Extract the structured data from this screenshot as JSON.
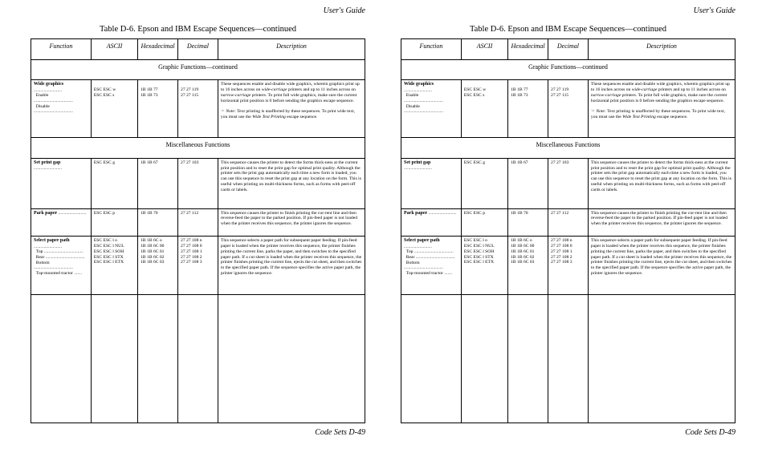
{
  "running_head": "User's Guide",
  "caption": "Table D-6.  Epson and IBM Escape Sequences—continued",
  "headers": {
    "function": "Function",
    "ascii": "ASCII",
    "hex": "Hexadecimal",
    "dec": "Decimal",
    "desc": "Description"
  },
  "section_graphic": "Graphic  Functions—continued",
  "section_misc": "Miscellaneous  Functions",
  "rows": {
    "wide": {
      "title": "Wide graphics",
      "enable": "Enable",
      "disable": "Disable",
      "ascii1": "ESC ESC w",
      "ascii2": "ESC ESC s",
      "hex1": "1B 1B 77",
      "hex2": "1B 1B 73",
      "dec1": "27 27 119",
      "dec2": "27 27 115",
      "desc_main": "These sequences enable and disable wide graphics, wherein graphics print up to 16 inches across on ",
      "desc_main2": " printers and up to 11 inches across on ",
      "desc_main3": " printers. To print full wide graphics, make sure the current horizontal print position is 0 before sending the graphics escape sequence.",
      "wide_term": "wide-carriage",
      "narrow_term": "narrow-carriage",
      "note_label": "Note:",
      "note_text": "  Text printing is unaffected by these sequences.  To print wide text, you must use the ",
      "note_ital": "Wide Text Printing",
      "note_end": " escape sequence."
    },
    "gap": {
      "title": "Set print gap",
      "ascii": "ESC ESC g",
      "hex": "1B 1B 67",
      "dec": "27 27 103",
      "desc": "This sequence causes the printer to detect the forms thick-ness at the current print position and to reset the print gap for optimal print quality.  Although the printer sets the print gap automatically each time a new form is loaded, you can use this sequence to reset the print gap at any location on the form. This is useful when printing on multi-thickness forms, such as forms with peel-off cards or labels."
    },
    "park": {
      "title": "Park paper",
      "ascii": "ESC ESC p",
      "hex": "1B 1B 70",
      "dec": "27 27 112",
      "desc": "This sequence causes the printer to finish printing the cur-rent line and then reverse-feed the paper to the parked position. If pin-feed paper is not loaded when the printer receives this sequence, the printer ignores the sequence."
    },
    "path": {
      "title": "Select paper path",
      "l1": "Top",
      "l2": "Rear",
      "l3": "Bottom",
      "l4": "Top-mounted  tractor",
      "ascii0": "ESC ESC l o",
      "ascii1": "ESC ESC l NUL",
      "ascii2": "ESC ESC l SOH",
      "ascii3": "ESC ESC l STX",
      "ascii4": "ESC ESC l ETX",
      "hex0": "1B 1B 6C o",
      "hex1": "1B 1B 6C 00",
      "hex2": "1B 1B 6C 01",
      "hex3": "1B 1B 6C 02",
      "hex4": "1B 1B 6C 03",
      "dec0": "27 27 108 n",
      "dec1": "27 27 108 0",
      "dec2": "27 27 108 1",
      "dec3": "27 27 108 2",
      "dec4": "27 27 108 3",
      "desc": "This sequence selects a paper path for subsequent paper feeding.  If pin-feed paper is loaded when the printer receives this sequence, the printer finishes printing the current line, parks the paper, and then switches to the specified paper path.  If a cut sheet is loaded when the printer receives this sequence, the printer finishes printing the current line, ejects the cut sheet, and then switches to the specified paper path.  If the sequence specifies the active paper path, the printer ignores the sequence."
    }
  },
  "footer": "Code Sets  D-49",
  "dots_long": " .........................",
  "dots_med": " ...................................",
  "dots_short": " ......."
}
